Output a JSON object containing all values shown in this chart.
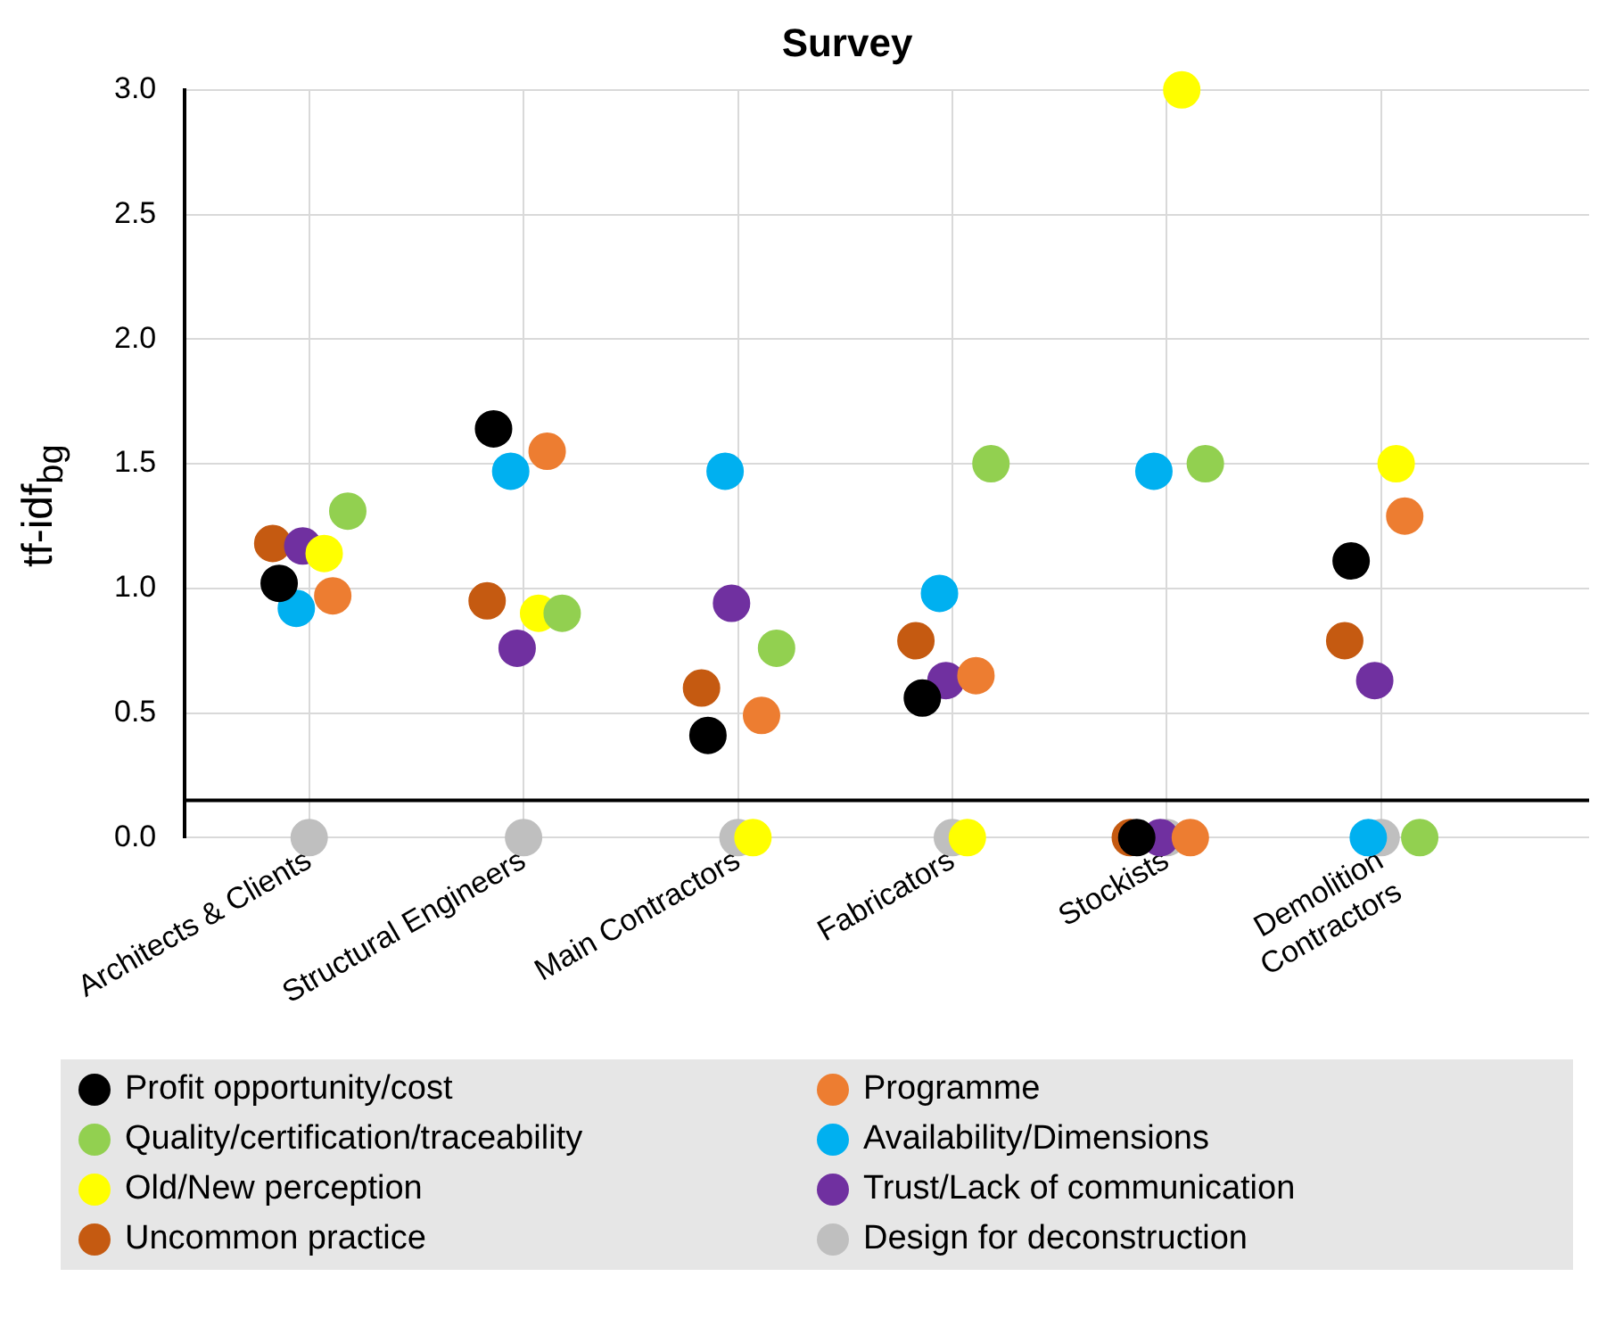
{
  "chart_data": {
    "type": "scatter",
    "title": "Survey",
    "ylabel": "tf-idf$_{bg}$",
    "categories": [
      "Architects & Clients",
      "Structural Engineers",
      "Main Contractors",
      "Fabricators",
      "Stockists",
      "Demolition Contractors"
    ],
    "ylim": [
      0,
      3
    ],
    "yticks": [
      {
        "value": 0,
        "label": "0.0"
      },
      {
        "value": 0.5,
        "label": "0.5"
      },
      {
        "value": 1,
        "label": "1.0"
      },
      {
        "value": 1.5,
        "label": "1.5"
      },
      {
        "value": 2,
        "label": "2.0"
      },
      {
        "value": 2.5,
        "label": "2.5"
      },
      {
        "value": 3,
        "label": "3.0"
      }
    ],
    "grid": true,
    "legend": "bottom",
    "marker": "circle",
    "ref_lines": [
      {
        "axis": "y",
        "value": 0.15,
        "color": "#000000"
      }
    ],
    "series": [
      {
        "name": "Profit opportunity/cost",
        "color": "#000000",
        "values": [
          1.02,
          1.64,
          0.41,
          0.56,
          0,
          1.11
        ]
      },
      {
        "name": "Programme",
        "color": "#ed7d31",
        "values": [
          0.97,
          1.55,
          0.49,
          0.65,
          0,
          1.29
        ]
      },
      {
        "name": "Quality/certification/traceability",
        "color": "#92d050",
        "values": [
          1.31,
          0.9,
          0.76,
          1.5,
          1.5,
          0
        ]
      },
      {
        "name": "Availability/Dimensions",
        "color": "#00b0f0",
        "values": [
          0.92,
          1.47,
          1.47,
          0.98,
          1.47,
          0
        ]
      },
      {
        "name": "Old/New perception",
        "color": "#ffff00",
        "values": [
          1.14,
          0.9,
          0,
          0,
          3.0,
          1.5
        ]
      },
      {
        "name": "Trust/Lack of communication",
        "color": "#7030a0",
        "values": [
          1.17,
          0.76,
          0.94,
          0.63,
          0,
          0.63
        ]
      },
      {
        "name": "Uncommon practice",
        "color": "#c55a11",
        "values": [
          1.18,
          0.95,
          0.6,
          0.79,
          0,
          0.79
        ]
      },
      {
        "name": "Design for deconstruction",
        "color": "#bfbfbf",
        "values": [
          0,
          0,
          0,
          0,
          0,
          0
        ]
      }
    ]
  }
}
